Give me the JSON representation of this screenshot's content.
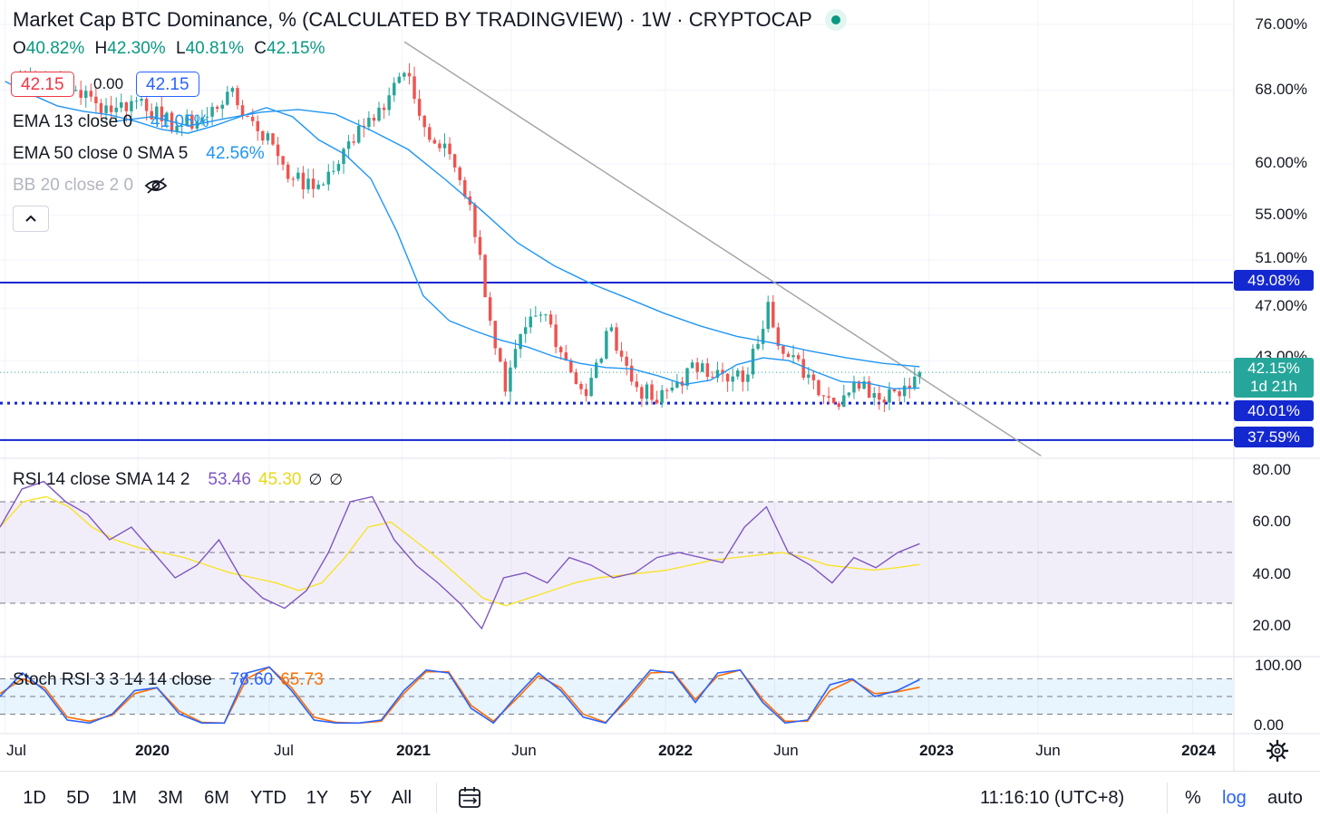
{
  "header": {
    "title": "Market Cap BTC Dominance, % (CALCULATED BY TRADINGVIEW) · 1W · CRYPTOCAP",
    "ohlc": {
      "o_label": "O",
      "o_value": "40.82%",
      "h_label": "H",
      "h_value": "42.30%",
      "l_label": "L",
      "l_value": "40.81%",
      "c_label": "C",
      "c_value": "42.15%"
    },
    "sell_price": "42.15",
    "spread": "0.00",
    "buy_price": "42.15",
    "status_color": "#089981"
  },
  "legend": {
    "ema13": {
      "label": "EMA 13 close 0",
      "value": "41.05%",
      "color": "#2196f3"
    },
    "ema50": {
      "label": "EMA 50 close 0 SMA 5",
      "value": "42.56%",
      "color": "#2196f3"
    },
    "bb": {
      "label": "BB 20 close 2 0",
      "hidden_icon": "eye-off-icon"
    },
    "collapse_icon": "chevron-up-icon"
  },
  "rsi_legend": {
    "label": "RSI 14 close SMA 14 2",
    "value": "53.46",
    "sma_value": "45.30",
    "icons": [
      "empty-set-icon",
      "empty-set-icon"
    ],
    "value_color": "#7e57c2",
    "sma_color": "#f7e32a"
  },
  "stoch_legend": {
    "label": "Stoch RSI 3 3 14 14 close",
    "k_value": "78.60",
    "d_value": "65.73",
    "k_color": "#2962ff",
    "d_color": "#ff6d00"
  },
  "price_axis": {
    "labels": [
      "76.00%",
      "68.00%",
      "60.00%",
      "55.00%",
      "51.00%",
      "47.00%",
      "43.00%",
      "37.59%"
    ],
    "tags": [
      {
        "value": "49.08%",
        "color": "#1428d0"
      },
      {
        "value": "42.15%",
        "sub": "1d 21h",
        "color": "#26a69a"
      },
      {
        "value": "40.01%",
        "color": "#1428d0"
      },
      {
        "value": "37.59%",
        "color": "#1428d0"
      }
    ]
  },
  "rsi_axis": {
    "labels": [
      "80.00",
      "60.00",
      "40.00",
      "20.00"
    ]
  },
  "stoch_axis": {
    "labels": [
      "100.00",
      "0.00"
    ]
  },
  "time_axis": {
    "labels": [
      {
        "text": "Jul",
        "bold": false
      },
      {
        "text": "2020",
        "bold": true
      },
      {
        "text": "Jul",
        "bold": false
      },
      {
        "text": "2021",
        "bold": true
      },
      {
        "text": "Jun",
        "bold": false
      },
      {
        "text": "2022",
        "bold": true
      },
      {
        "text": "Jun",
        "bold": false
      },
      {
        "text": "2023",
        "bold": true
      },
      {
        "text": "Jun",
        "bold": false
      },
      {
        "text": "2024",
        "bold": true
      }
    ],
    "settings_icon": "gear-icon"
  },
  "bottom_bar": {
    "timeframes": [
      "1D",
      "5D",
      "1M",
      "3M",
      "6M",
      "YTD",
      "1Y",
      "5Y",
      "All"
    ],
    "range_icon": "calendar-range-icon",
    "clock": "11:16:10 (UTC+8)",
    "percent": "%",
    "log": "log",
    "auto": "auto",
    "accent": "#2962ff"
  },
  "chart_data": [
    {
      "type": "candlestick",
      "title": "Market Cap BTC Dominance, % (CALCULATED BY TRADINGVIEW) · 1W · CRYPTOCAP",
      "scale": "log",
      "ylim": [
        36.5,
        78
      ],
      "x_range": [
        "2019-06-24",
        "2024-02-26"
      ],
      "last_close": 42.15,
      "candles": [
        {
          "t": "2019-07-08",
          "c": 69.0
        },
        {
          "t": "2019-08-05",
          "c": 69.5
        },
        {
          "t": "2019-09-02",
          "c": 69.0
        },
        {
          "t": "2019-10-07",
          "c": 68.0
        },
        {
          "t": "2019-11-04",
          "c": 66.5
        },
        {
          "t": "2019-12-02",
          "c": 66.0
        },
        {
          "t": "2020-01-06",
          "c": 67.0
        },
        {
          "t": "2020-02-03",
          "c": 64.5
        },
        {
          "t": "2020-03-02",
          "c": 64.0
        },
        {
          "t": "2020-04-06",
          "c": 65.0
        },
        {
          "t": "2020-05-04",
          "c": 67.8
        },
        {
          "t": "2020-06-01",
          "c": 65.0
        },
        {
          "t": "2020-07-06",
          "c": 62.0
        },
        {
          "t": "2020-08-03",
          "c": 58.5
        },
        {
          "t": "2020-08-31",
          "c": 57.5
        },
        {
          "t": "2020-10-05",
          "c": 60.0
        },
        {
          "t": "2020-11-02",
          "c": 64.0
        },
        {
          "t": "2020-11-30",
          "c": 66.0
        },
        {
          "t": "2021-01-04",
          "c": 70.0
        },
        {
          "t": "2021-01-18",
          "c": 67.0
        },
        {
          "t": "2021-02-08",
          "c": 62.5
        },
        {
          "t": "2021-03-08",
          "c": 61.0
        },
        {
          "t": "2021-04-05",
          "c": 56.0
        },
        {
          "t": "2021-05-03",
          "c": 46.0
        },
        {
          "t": "2021-05-24",
          "c": 40.8
        },
        {
          "t": "2021-06-21",
          "c": 45.5
        },
        {
          "t": "2021-07-19",
          "c": 46.5
        },
        {
          "t": "2021-08-16",
          "c": 43.0
        },
        {
          "t": "2021-09-13",
          "c": 40.5
        },
        {
          "t": "2021-10-18",
          "c": 45.5
        },
        {
          "t": "2021-11-15",
          "c": 41.5
        },
        {
          "t": "2021-12-20",
          "c": 40.0
        },
        {
          "t": "2022-01-17",
          "c": 41.5
        },
        {
          "t": "2022-02-21",
          "c": 42.8
        },
        {
          "t": "2022-03-28",
          "c": 41.5
        },
        {
          "t": "2022-04-25",
          "c": 42.0
        },
        {
          "t": "2022-05-23",
          "c": 47.5
        },
        {
          "t": "2022-06-13",
          "c": 43.5
        },
        {
          "t": "2022-07-18",
          "c": 42.0
        },
        {
          "t": "2022-08-22",
          "c": 40.0
        },
        {
          "t": "2022-09-19",
          "c": 41.5
        },
        {
          "t": "2022-10-17",
          "c": 40.7
        },
        {
          "t": "2022-11-14",
          "c": 40.82
        },
        {
          "t": "2022-12-19",
          "c": 42.15
        }
      ],
      "series": [
        {
          "name": "EMA 13 close 0",
          "type": "line",
          "values": [
            69.0,
            67.5,
            66.2,
            65.6,
            65.2,
            64.5,
            63.6,
            63.2,
            64.0,
            65.0,
            66.0,
            65.0,
            62.5,
            61.0,
            58.5,
            53.5,
            48.0,
            46.0,
            45.2,
            44.5,
            44.0,
            43.3,
            42.8,
            42.5,
            42.4,
            41.9,
            41.3,
            41.6,
            42.7,
            43.2,
            43.0,
            42.2,
            41.5,
            41.4,
            41.0,
            41.05
          ]
        },
        {
          "name": "EMA 50 close 0 SMA 5",
          "type": "line",
          "values": [
            64.5,
            65.0,
            64.0,
            64.8,
            65.5,
            65.8,
            65.3,
            63.5,
            61.5,
            58.5,
            55.5,
            52.5,
            50.5,
            49.0,
            47.8,
            46.6,
            45.6,
            44.8,
            44.3,
            43.7,
            43.2,
            42.8,
            42.56
          ]
        }
      ]
    },
    {
      "type": "line",
      "title": "RSI 14 close SMA 14 2",
      "ylim": [
        10,
        85
      ],
      "levels": [
        70,
        50,
        30
      ],
      "series": [
        {
          "name": "RSI",
          "values": [
            60,
            75,
            78,
            70,
            65,
            55,
            60,
            50,
            40,
            45,
            55,
            40,
            32,
            28,
            35,
            50,
            70,
            72,
            55,
            45,
            38,
            30,
            20,
            40,
            42,
            38,
            48,
            45,
            40,
            42,
            48,
            50,
            48,
            46,
            60,
            68,
            50,
            45,
            38,
            48,
            44,
            50,
            53.46
          ]
        },
        {
          "name": "SMA",
          "values": [
            60,
            70,
            72,
            68,
            60,
            55,
            52,
            50,
            48,
            45,
            42,
            40,
            38,
            35,
            38,
            48,
            60,
            62,
            55,
            48,
            40,
            32,
            29,
            32,
            35,
            38,
            40,
            41,
            42,
            43,
            45,
            47,
            48,
            49,
            50,
            48,
            45,
            44,
            43,
            44,
            45.3
          ]
        }
      ]
    },
    {
      "type": "line",
      "title": "Stoch RSI 3 3 14 14 close",
      "ylim": [
        -10,
        110
      ],
      "levels": [
        80,
        50,
        20
      ],
      "series": [
        {
          "name": "K",
          "values": [
            50,
            90,
            60,
            10,
            5,
            20,
            60,
            65,
            20,
            5,
            5,
            90,
            100,
            60,
            10,
            5,
            5,
            10,
            60,
            95,
            90,
            30,
            5,
            50,
            90,
            60,
            15,
            5,
            50,
            95,
            90,
            40,
            90,
            95,
            40,
            5,
            10,
            70,
            80,
            50,
            60,
            78.6
          ]
        },
        {
          "name": "D",
          "values": [
            55,
            80,
            65,
            15,
            8,
            18,
            55,
            65,
            25,
            6,
            5,
            80,
            100,
            65,
            15,
            6,
            5,
            8,
            55,
            92,
            92,
            35,
            8,
            45,
            85,
            65,
            20,
            6,
            45,
            90,
            92,
            45,
            85,
            95,
            45,
            8,
            8,
            60,
            78,
            55,
            58,
            65.73
          ]
        }
      ]
    }
  ]
}
